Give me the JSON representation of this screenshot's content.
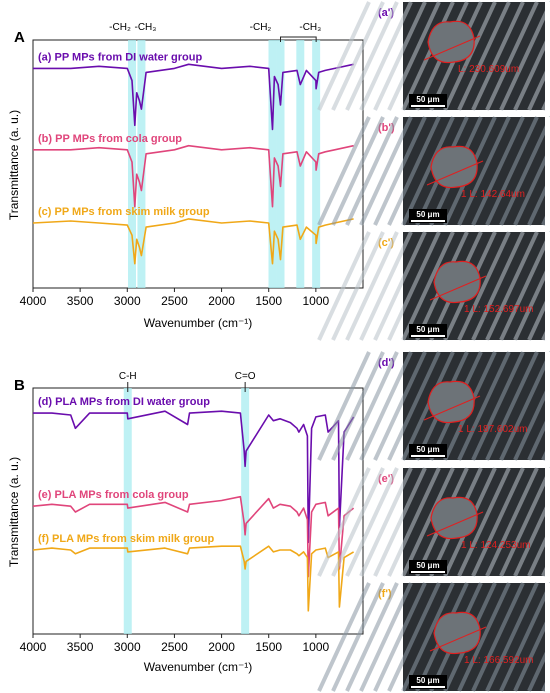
{
  "chart_data": [
    {
      "type": "line",
      "panel_label": "A",
      "xlabel": "Wavenumber (cm⁻¹)",
      "ylabel": "Transmittance (a. u.)",
      "xlim": [
        4000,
        500
      ],
      "x_ticks": [
        4000,
        3500,
        3000,
        2500,
        2000,
        1500,
        1000
      ],
      "y_ticks_shown": false,
      "highlight_bands": [
        2950,
        2850,
        1460,
        1375,
        1165,
        997
      ],
      "annotations": [
        "-CH₂",
        "-CH₃",
        "-CH₂",
        "-CH₃"
      ],
      "series": [
        {
          "name": "(a) PP MPs from DI water group",
          "color": "#6a0dad",
          "x": [
            4000,
            3600,
            3300,
            3000,
            2950,
            2920,
            2900,
            2870,
            2850,
            2800,
            2500,
            2350,
            2000,
            1700,
            1500,
            1460,
            1440,
            1400,
            1375,
            1350,
            1200,
            1165,
            1100,
            1000,
            997,
            970,
            900,
            800,
            600
          ],
          "y": [
            5.0,
            5.0,
            5.05,
            5.0,
            4.7,
            3.6,
            4.4,
            4.2,
            4.0,
            4.9,
            5.0,
            5.1,
            5.0,
            5.05,
            5.0,
            3.5,
            4.8,
            4.6,
            4.1,
            4.9,
            4.95,
            4.6,
            4.95,
            4.7,
            4.5,
            4.9,
            4.95,
            5.0,
            5.1
          ]
        },
        {
          "name": "(b) PP MPs from cola group",
          "color": "#e0457b",
          "x": [
            4000,
            3600,
            3300,
            3000,
            2950,
            2920,
            2900,
            2870,
            2850,
            2800,
            2500,
            2350,
            2000,
            1700,
            1500,
            1460,
            1440,
            1400,
            1375,
            1350,
            1200,
            1165,
            1100,
            1000,
            997,
            970,
            900,
            800,
            600
          ],
          "y": [
            3.0,
            3.0,
            3.05,
            3.0,
            2.7,
            1.6,
            2.4,
            2.2,
            2.0,
            2.9,
            3.0,
            3.1,
            3.0,
            3.05,
            3.0,
            1.6,
            2.8,
            2.6,
            2.1,
            2.9,
            2.95,
            2.6,
            2.95,
            2.7,
            2.5,
            2.9,
            2.95,
            3.0,
            3.1
          ]
        },
        {
          "name": "(c) PP MPs from skim milk group",
          "color": "#f0a818",
          "x": [
            4000,
            3600,
            3300,
            3000,
            2950,
            2920,
            2900,
            2870,
            2850,
            2800,
            2500,
            2350,
            2000,
            1700,
            1500,
            1460,
            1440,
            1400,
            1375,
            1350,
            1200,
            1165,
            1100,
            1000,
            997,
            970,
            900,
            800,
            600
          ],
          "y": [
            1.2,
            1.25,
            1.2,
            1.15,
            0.9,
            0.2,
            0.8,
            0.6,
            0.4,
            1.1,
            1.2,
            1.3,
            1.2,
            1.25,
            1.2,
            0.2,
            1.0,
            0.8,
            0.3,
            1.1,
            1.15,
            0.8,
            1.1,
            0.9,
            0.7,
            1.1,
            1.15,
            1.2,
            1.3
          ]
        }
      ]
    },
    {
      "type": "line",
      "panel_label": "B",
      "xlabel": "Wavenumber (cm⁻¹)",
      "ylabel": "Transmittance (a. u.)",
      "xlim": [
        4000,
        500
      ],
      "x_ticks": [
        4000,
        3500,
        3000,
        2500,
        2000,
        1500,
        1000
      ],
      "y_ticks_shown": false,
      "highlight_bands": [
        2995,
        1750
      ],
      "annotations": [
        "C-H",
        "C=O"
      ],
      "series": [
        {
          "name": "(d) PLA MPs from DI water group",
          "color": "#6a0dad",
          "x": [
            4000,
            3800,
            3600,
            3550,
            3400,
            3000,
            2995,
            2600,
            2360,
            2340,
            2000,
            1800,
            1760,
            1750,
            1740,
            1500,
            1450,
            1380,
            1270,
            1200,
            1180,
            1130,
            1090,
            1080,
            1045,
            1000,
            900,
            870,
            760,
            750,
            700,
            600
          ],
          "y": [
            5.0,
            5.0,
            4.95,
            4.6,
            5.0,
            5.0,
            4.85,
            5.05,
            4.7,
            5.0,
            5.05,
            5.0,
            4.0,
            3.6,
            4.0,
            4.95,
            4.8,
            4.85,
            4.75,
            4.6,
            4.5,
            4.7,
            4.4,
            1.6,
            4.6,
            4.9,
            4.95,
            4.5,
            4.8,
            2.0,
            4.5,
            4.9
          ]
        },
        {
          "name": "(e) PLA MPs from cola group",
          "color": "#e0457b",
          "x": [
            4000,
            3800,
            3600,
            3550,
            3400,
            3000,
            2995,
            2600,
            2360,
            2340,
            2000,
            1800,
            1760,
            1750,
            1740,
            1500,
            1450,
            1380,
            1270,
            1200,
            1180,
            1130,
            1090,
            1080,
            1045,
            1000,
            900,
            870,
            760,
            750,
            700,
            600
          ],
          "y": [
            2.55,
            2.6,
            2.55,
            2.4,
            2.6,
            2.6,
            2.5,
            2.65,
            2.4,
            2.6,
            2.7,
            2.8,
            2.1,
            1.8,
            2.1,
            2.75,
            2.5,
            2.6,
            2.55,
            2.4,
            2.3,
            2.5,
            2.2,
            0.7,
            2.4,
            2.6,
            2.65,
            2.3,
            2.5,
            0.9,
            2.3,
            2.5
          ]
        },
        {
          "name": "(f) PLA MPs from skim milk group",
          "color": "#f0a818",
          "x": [
            4000,
            3800,
            3600,
            3550,
            3400,
            3000,
            2995,
            2600,
            2360,
            2340,
            2000,
            1800,
            1760,
            1750,
            1740,
            1500,
            1450,
            1380,
            1270,
            1200,
            1180,
            1130,
            1090,
            1080,
            1045,
            1000,
            900,
            870,
            760,
            750,
            700,
            600
          ],
          "y": [
            1.4,
            1.45,
            1.4,
            1.3,
            1.45,
            1.45,
            1.35,
            1.45,
            1.3,
            1.45,
            1.5,
            1.5,
            1.1,
            0.9,
            1.1,
            1.5,
            1.35,
            1.4,
            1.4,
            1.3,
            1.25,
            1.35,
            1.2,
            -0.2,
            1.3,
            1.4,
            1.45,
            1.2,
            1.35,
            -0.1,
            1.2,
            1.35
          ]
        }
      ]
    }
  ],
  "micrographs": [
    {
      "label": "(a')",
      "label_color": "#6a0dad",
      "measurement": "L: 230.609um",
      "scale_bar": "50 μm"
    },
    {
      "label": "(b')",
      "label_color": "#e0457b",
      "measurement": "1 L: 142.64um",
      "scale_bar": "50 μm"
    },
    {
      "label": "(c')",
      "label_color": "#f0a818",
      "measurement": "1 L: 152.697um",
      "scale_bar": "50 μm"
    },
    {
      "label": "(d')",
      "label_color": "#6a0dad",
      "measurement": "1 L: 187.602um",
      "scale_bar": "50 μm"
    },
    {
      "label": "(e')",
      "label_color": "#e0457b",
      "measurement": "1 L: 124.253um",
      "scale_bar": "50 μm"
    },
    {
      "label": "(f')",
      "label_color": "#f0a818",
      "measurement": "1 L: 166.592um",
      "scale_bar": "50 μm"
    }
  ]
}
